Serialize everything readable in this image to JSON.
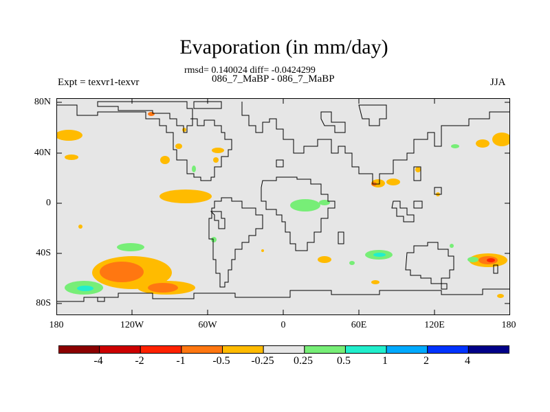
{
  "title": "Evaporation (in mm/day)",
  "stats_line": "rmsd= 0.140024 diff= -0.0424299",
  "experiment_name": "086_7_MaBP - 086_7_MaBP",
  "experiment_label": "Expt = texvr1-texvr",
  "season": "JJA",
  "y_ticks": [
    "80N",
    "40N",
    "0",
    "40S",
    "80S"
  ],
  "x_ticks": [
    "180",
    "120W",
    "60W",
    "0",
    "60E",
    "120E",
    "180"
  ],
  "colors": {
    "land_outline": "#000000",
    "background": "#e6e6e6"
  },
  "colorbar": {
    "labels": [
      "-4",
      "-2",
      "-1",
      "-0.5",
      "-0.25",
      "0.25",
      "0.5",
      "1",
      "2",
      "4"
    ],
    "colors": [
      "#8b0000",
      "#cc0000",
      "#ff2200",
      "#ff7711",
      "#ffbb00",
      "#e6e6e6",
      "#77ee77",
      "#22eecc",
      "#00aaff",
      "#0033ff",
      "#000088"
    ]
  }
}
